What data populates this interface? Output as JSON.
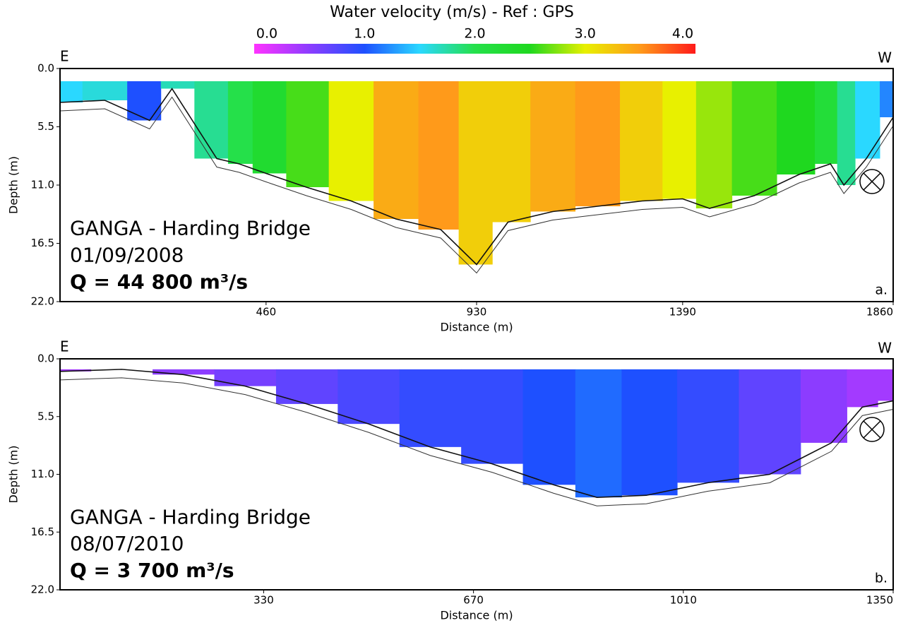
{
  "colorbar": {
    "title": "Water velocity (m/s) - Ref : GPS",
    "lim": [
      0,
      4
    ],
    "ticks": [
      {
        "value": 0,
        "label": "0.0"
      },
      {
        "value": 1,
        "label": "1.0"
      },
      {
        "value": 2,
        "label": "2.0"
      },
      {
        "value": 3,
        "label": "3.0"
      },
      {
        "value": 4,
        "label": "4.0"
      }
    ],
    "colors": [
      "#ff33ff",
      "#8c3cff",
      "#1e50ff",
      "#2ad8ff",
      "#25e04a",
      "#1fd81f",
      "#e8f000",
      "#ff9a1a",
      "#ff1a1a"
    ]
  },
  "chart_data": [
    {
      "type": "section",
      "xlabel": "Distance (m)",
      "ylabel": "Depth (m)",
      "xlim": [
        0,
        1860
      ],
      "xticks": [
        460,
        930,
        1390,
        1860
      ],
      "ylim": [
        0,
        22
      ],
      "yticks": [
        {
          "value": 0,
          "label": "0.0"
        },
        5.5,
        {
          "value": 11,
          "label": "11.0"
        },
        16.5,
        {
          "value": 22,
          "label": "22.0"
        }
      ],
      "surface_depth": 1.2,
      "x": [
        0,
        100,
        200,
        250,
        350,
        400,
        460,
        550,
        650,
        750,
        850,
        930,
        1000,
        1100,
        1200,
        1300,
        1390,
        1450,
        1550,
        1650,
        1720,
        1750,
        1800,
        1860
      ],
      "bed_depth": [
        3.2,
        3.0,
        4.9,
        1.9,
        8.5,
        9.0,
        9.9,
        11.2,
        12.5,
        14.2,
        15.2,
        18.5,
        14.5,
        13.5,
        13.0,
        12.5,
        12.3,
        13.2,
        12.0,
        10.0,
        9.0,
        11.0,
        8.5,
        4.6
      ],
      "velocity": [
        1.5,
        1.6,
        1.0,
        1.7,
        1.8,
        2.0,
        2.3,
        2.6,
        3.0,
        3.4,
        3.5,
        3.2,
        3.2,
        3.4,
        3.5,
        3.2,
        3.0,
        2.8,
        2.6,
        2.5,
        2.2,
        1.8,
        1.5,
        1.2
      ],
      "annotations": {
        "left": "E",
        "right": "W",
        "site": "GANGA - Harding Bridge",
        "date": "01/09/2008",
        "discharge": "Q = 44 800 m³/s",
        "panel": "a."
      }
    },
    {
      "type": "section",
      "xlabel": "Distance (m)",
      "ylabel": "Depth (m)",
      "xlim": [
        0,
        1350
      ],
      "xticks": [
        330,
        670,
        1010,
        1350
      ],
      "ylim": [
        0,
        22
      ],
      "yticks": [
        {
          "value": 0,
          "label": "0.0"
        },
        5.5,
        {
          "value": 11,
          "label": "11.0"
        },
        16.5,
        {
          "value": 22,
          "label": "22.0"
        }
      ],
      "surface_depth": 1.0,
      "x": [
        0,
        100,
        200,
        300,
        400,
        500,
        600,
        700,
        800,
        870,
        950,
        1050,
        1150,
        1250,
        1300,
        1350
      ],
      "bed_depth": [
        1.2,
        1.0,
        1.5,
        2.6,
        4.3,
        6.2,
        8.4,
        10.0,
        12.0,
        13.2,
        13.0,
        11.8,
        11.0,
        8.0,
        4.6,
        4.0
      ],
      "velocity": [
        0.4,
        0.5,
        0.5,
        0.6,
        0.7,
        0.8,
        0.9,
        0.9,
        1.0,
        1.1,
        1.0,
        0.9,
        0.7,
        0.5,
        0.4,
        0.4
      ],
      "annotations": {
        "left": "E",
        "right": "W",
        "site": "GANGA - Harding Bridge",
        "date": "08/07/2010",
        "discharge": "Q = 3 700 m³/s",
        "panel": "b."
      }
    }
  ]
}
